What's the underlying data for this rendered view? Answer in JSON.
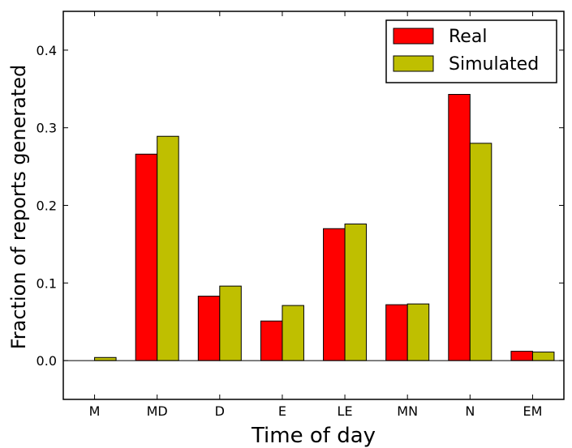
{
  "chart_data": {
    "type": "bar",
    "title": "",
    "xlabel": "Time of day",
    "ylabel": "Fraction of  reports generated",
    "categories": [
      "M",
      "MD",
      "D",
      "E",
      "LE",
      "MN",
      "N",
      "EM"
    ],
    "series": [
      {
        "name": "Real",
        "color": "#ff0000",
        "values": [
          0.0,
          0.266,
          0.083,
          0.051,
          0.17,
          0.072,
          0.343,
          0.012
        ]
      },
      {
        "name": "Simulated",
        "color": "#bfbf00",
        "values": [
          0.004,
          0.289,
          0.096,
          0.071,
          0.176,
          0.073,
          0.28,
          0.011
        ]
      }
    ],
    "ylim": [
      -0.05,
      0.45
    ],
    "yticks": [
      0.0,
      0.1,
      0.2,
      0.3,
      0.4
    ],
    "ytick_labels": [
      "0.0",
      "0.1",
      "0.2",
      "0.3",
      "0.4"
    ],
    "grid": false,
    "legend_position": "top-right"
  }
}
